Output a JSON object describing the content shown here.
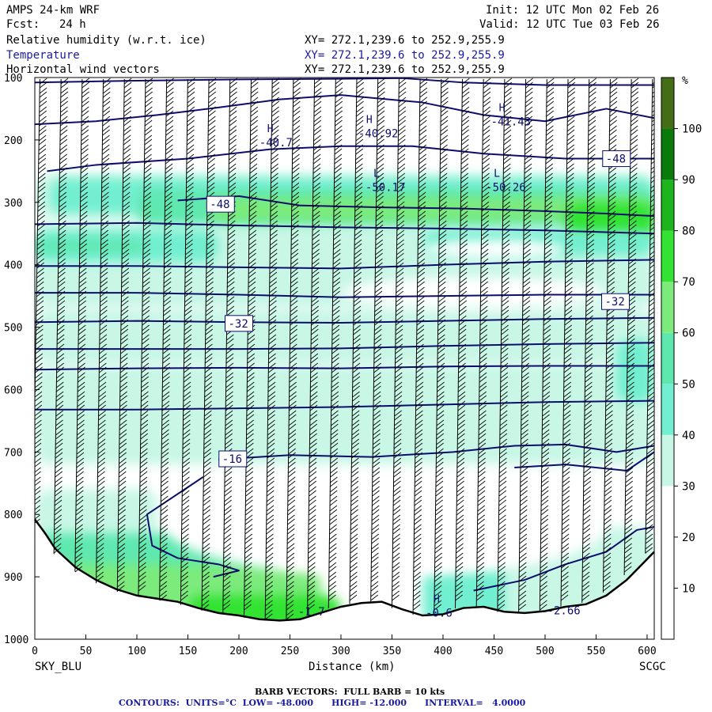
{
  "header": {
    "title_left": "AMPS 24-km WRF",
    "fcst_label": "Fcst:",
    "fcst_value": "24 h",
    "init": "Init: 12 UTC Mon 02 Feb 26",
    "valid": "Valid: 12 UTC Tue 03 Feb 26",
    "field1": "Relative humidity (w.r.t. ice)",
    "field2": "Temperature",
    "field3": "Horizontal wind vectors",
    "xy1": "XY= 272.1,239.6 to 252.9,255.9",
    "xy2": "XY= 272.1,239.6 to 252.9,255.9",
    "xy3": "XY= 272.1,239.6 to 252.9,255.9"
  },
  "colors": {
    "temperature_contour": "#0d0d6e",
    "terrain": "#000000",
    "rh_20_30": "#ffffff",
    "rh_30_40": "#c8f7e6",
    "rh_40_50": "#72efd0",
    "rh_50_60": "#5ee8b0",
    "rh_60_70": "#7ceb7c",
    "rh_70_80": "#33e333",
    "rh_80_90": "#1eb41e",
    "rh_90_100": "#0a7a0a",
    "rh_100_plus": "#456d16"
  },
  "footer": {
    "barb_note": "BARB VECTORS:  FULL BARB = 10 kts",
    "contour_note": "CONTOURS:  UNITS=°C  LOW= -48.000      HIGH= -12.000      INTERVAL=   4.0000"
  },
  "chart_data": {
    "type": "heatmap",
    "description_fields": [
      "Relative humidity (w.r.t. ice)",
      "Temperature",
      "Horizontal wind vectors"
    ],
    "xlabel": "Distance (km)",
    "ylabel": "",
    "x_ticks": [
      0,
      50,
      100,
      150,
      200,
      250,
      300,
      350,
      400,
      450,
      500,
      550,
      600
    ],
    "xlim": [
      0,
      607
    ],
    "y_ticks": [
      100,
      200,
      300,
      400,
      500,
      600,
      700,
      800,
      900,
      1000
    ],
    "ylim": [
      1000,
      100
    ],
    "x_left_label": "SKY_BLU",
    "x_right_label": "SCGC",
    "colorbar": {
      "unit": "%",
      "levels": [
        10,
        20,
        30,
        40,
        50,
        60,
        70,
        80,
        90,
        100
      ],
      "colors": [
        "#ffffff",
        "#ffffff",
        "#ffffff",
        "#c8f7e6",
        "#72efd0",
        "#5ee8b0",
        "#7ceb7c",
        "#33e333",
        "#1eb41e",
        "#0a7a0a",
        "#456d16"
      ]
    },
    "contour_labels": [
      {
        "text": "-48",
        "x": 170,
        "p": 303
      },
      {
        "text": "-48",
        "x": 558,
        "p": 230
      },
      {
        "text": "-32",
        "x": 188,
        "p": 494
      },
      {
        "text": "-32",
        "x": 557,
        "p": 459
      },
      {
        "text": "-16",
        "x": 182,
        "p": 711
      }
    ],
    "extrema_labels": [
      {
        "mark": "H",
        "value": "-40.7",
        "x": 220,
        "p": 210
      },
      {
        "mark": "H",
        "value": "-40.92",
        "x": 317,
        "p": 196
      },
      {
        "mark": "H",
        "value": "-41.43",
        "x": 447,
        "p": 177
      },
      {
        "mark": "L",
        "value": "-50.17",
        "x": 324,
        "p": 282
      },
      {
        "mark": "L",
        "value": "-50.26",
        "x": 442,
        "p": 282
      },
      {
        "mark": "",
        "value": "-1.7",
        "x": 258,
        "p": 962
      },
      {
        "mark": "H",
        "value": "-0.6",
        "x": 383,
        "p": 964
      },
      {
        "mark": "",
        "value": "-2.66",
        "x": 502,
        "p": 960
      }
    ],
    "temperature_contours_levels": [
      -48,
      -44,
      -40,
      -36,
      -32,
      -28,
      -24,
      -20,
      -16,
      -12
    ],
    "terrain_surface": [
      [
        0,
        808
      ],
      [
        10,
        830
      ],
      [
        20,
        855
      ],
      [
        40,
        885
      ],
      [
        60,
        905
      ],
      [
        80,
        920
      ],
      [
        100,
        930
      ],
      [
        120,
        935
      ],
      [
        140,
        940
      ],
      [
        160,
        950
      ],
      [
        180,
        958
      ],
      [
        200,
        962
      ],
      [
        220,
        968
      ],
      [
        240,
        970
      ],
      [
        260,
        968
      ],
      [
        280,
        958
      ],
      [
        300,
        948
      ],
      [
        320,
        942
      ],
      [
        340,
        940
      ],
      [
        360,
        952
      ],
      [
        380,
        962
      ],
      [
        400,
        960
      ],
      [
        420,
        950
      ],
      [
        440,
        948
      ],
      [
        460,
        956
      ],
      [
        480,
        958
      ],
      [
        500,
        955
      ],
      [
        520,
        948
      ],
      [
        540,
        944
      ],
      [
        560,
        930
      ],
      [
        580,
        905
      ],
      [
        595,
        880
      ],
      [
        607,
        860
      ]
    ],
    "barb_note": "FULL BARB = 10 kts"
  }
}
